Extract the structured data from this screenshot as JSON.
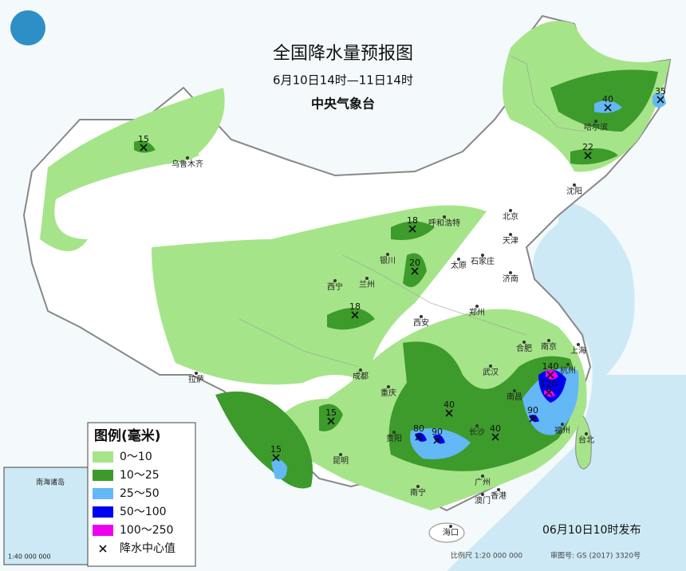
{
  "header": {
    "title": "全国降水量预报图",
    "subtitle": "6月10日14时—11日14时",
    "issuer": "中央气象台"
  },
  "legend": {
    "title": "图例(毫米)",
    "items": [
      {
        "label": "0～10",
        "color": "#a6e48a"
      },
      {
        "label": "10～25",
        "color": "#3d9b2b"
      },
      {
        "label": "25～50",
        "color": "#63b8f5"
      },
      {
        "label": "50～100",
        "color": "#0000f0"
      },
      {
        "label": "100～250",
        "color": "#f000f0"
      }
    ],
    "center_label": "降水中心值"
  },
  "precip_centers": [
    15,
    18,
    20,
    18,
    15,
    15,
    40,
    35,
    22,
    40,
    80,
    90,
    40,
    90,
    140,
    120
  ],
  "cities": [
    "乌鲁木齐",
    "哈尔滨",
    "沈阳",
    "呼和浩特",
    "北京",
    "天津",
    "银川",
    "太原",
    "石家庄",
    "济南",
    "西宁",
    "兰州",
    "郑州",
    "西安",
    "合肥",
    "南京",
    "上海",
    "杭州",
    "武汉",
    "成都",
    "重庆",
    "拉萨",
    "长沙",
    "南昌",
    "福州",
    "贵阳",
    "昆明",
    "台北",
    "南宁",
    "广州",
    "香港",
    "澳门",
    "海口"
  ],
  "footer": {
    "issued": "06月10日10时发布",
    "scale": "比例尺 1:20 000 000",
    "review": "审图号: GS (2017) 3320号",
    "inset_title": "南海诸岛",
    "inset_scale": "1:40 000 000"
  }
}
